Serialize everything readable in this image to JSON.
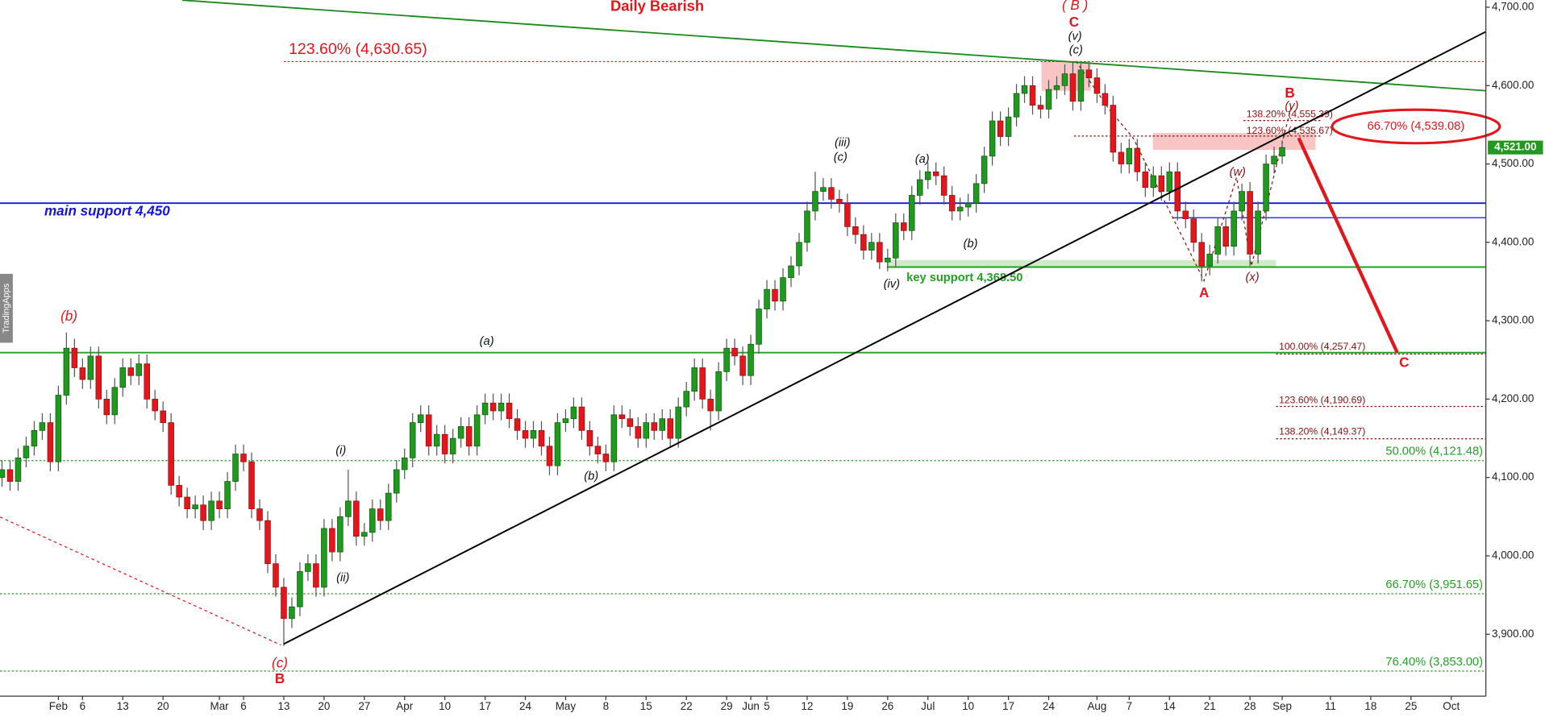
{
  "chart_data": {
    "type": "candlestick",
    "title": "Daily Bearish",
    "watermark": "TradingApps",
    "up_color": "#1f9a1f",
    "down_color": "#e3161b",
    "xlim": [
      -0.25,
      184.3
    ],
    "ylim": [
      3821,
      4709
    ],
    "xticks": [
      {
        "value": 7,
        "label": "Feb"
      },
      {
        "value": 10,
        "label": "6"
      },
      {
        "value": 15,
        "label": "13"
      },
      {
        "value": 20,
        "label": "20"
      },
      {
        "value": 27,
        "label": "Mar"
      },
      {
        "value": 30,
        "label": "6"
      },
      {
        "value": 35,
        "label": "13"
      },
      {
        "value": 40,
        "label": "20"
      },
      {
        "value": 45,
        "label": "27"
      },
      {
        "value": 50,
        "label": "Apr"
      },
      {
        "value": 55,
        "label": "10"
      },
      {
        "value": 60,
        "label": "17"
      },
      {
        "value": 65,
        "label": "24"
      },
      {
        "value": 70,
        "label": "May"
      },
      {
        "value": 75,
        "label": "8"
      },
      {
        "value": 80,
        "label": "15"
      },
      {
        "value": 85,
        "label": "22"
      },
      {
        "value": 90,
        "label": "29"
      },
      {
        "value": 93,
        "label": "Jun"
      },
      {
        "value": 95,
        "label": "5"
      },
      {
        "value": 100,
        "label": "12"
      },
      {
        "value": 105,
        "label": "19"
      },
      {
        "value": 110,
        "label": "26"
      },
      {
        "value": 115,
        "label": "Jul"
      },
      {
        "value": 120,
        "label": "10"
      },
      {
        "value": 125,
        "label": "17"
      },
      {
        "value": 130,
        "label": "24"
      },
      {
        "value": 136,
        "label": "Aug"
      },
      {
        "value": 140,
        "label": "7"
      },
      {
        "value": 145,
        "label": "14"
      },
      {
        "value": 150,
        "label": "21"
      },
      {
        "value": 155,
        "label": "28"
      },
      {
        "value": 159,
        "label": "Sep"
      },
      {
        "value": 165,
        "label": "11"
      },
      {
        "value": 170,
        "label": "18"
      },
      {
        "value": 175,
        "label": "25"
      },
      {
        "value": 180,
        "label": "Oct"
      }
    ],
    "yticks": [
      {
        "value": 3900,
        "label": "3,900.00"
      },
      {
        "value": 4000,
        "label": "4,000.00"
      },
      {
        "value": 4100,
        "label": "4,100.00"
      },
      {
        "value": 4200,
        "label": "4,200.00"
      },
      {
        "value": 4300,
        "label": "4,300.00"
      },
      {
        "value": 4400,
        "label": "4,400.00"
      },
      {
        "value": 4500,
        "label": "4,500.00"
      },
      {
        "value": 4600,
        "label": "4,600.00"
      },
      {
        "value": 4700,
        "label": "4,700.00"
      }
    ],
    "open": [
      4100,
      4110,
      4095,
      4125,
      4140,
      4160,
      4170,
      4120,
      4205,
      4265,
      4240,
      4225,
      4255,
      4200,
      4180,
      4215,
      4240,
      4230,
      4245,
      4200,
      4185,
      4170,
      4090,
      4075,
      4060,
      4065,
      4045,
      4070,
      4060,
      4095,
      4130,
      4120,
      4060,
      4045,
      3990,
      3960,
      3920,
      3935,
      3980,
      3990,
      3960,
      4035,
      4005,
      4050,
      4070,
      4025,
      4030,
      4060,
      4045,
      4080,
      4110,
      4125,
      4170,
      4180,
      4140,
      4155,
      4130,
      4150,
      4165,
      4140,
      4180,
      4195,
      4185,
      4195,
      4175,
      4160,
      4150,
      4160,
      4140,
      4115,
      4170,
      4175,
      4190,
      4160,
      4140,
      4130,
      4120,
      4180,
      4175,
      4165,
      4150,
      4170,
      4160,
      4175,
      4150,
      4190,
      4210,
      4240,
      4200,
      4185,
      4235,
      4265,
      4255,
      4230,
      4270,
      4315,
      4340,
      4325,
      4355,
      4370,
      4400,
      4440,
      4465,
      4470,
      4455,
      4450,
      4420,
      4410,
      4390,
      4400,
      4375,
      4380,
      4425,
      4415,
      4460,
      4480,
      4490,
      4485,
      4460,
      4440,
      4445,
      4450,
      4475,
      4510,
      4555,
      4535,
      4560,
      4590,
      4600,
      4575,
      4570,
      4595,
      4600,
      4615,
      4580,
      4620,
      4610,
      4590,
      4575,
      4515,
      4500,
      4520,
      4490,
      4470,
      4485,
      4465,
      4490,
      4440,
      4430,
      4400,
      4370,
      4385,
      4420,
      4395,
      4440,
      4465,
      4385,
      4440,
      4500,
      4510
    ],
    "high": [
      4122,
      4122,
      4137,
      4152,
      4172,
      4182,
      4182,
      4217,
      4285,
      4277,
      4252,
      4267,
      4267,
      4212,
      4227,
      4252,
      4252,
      4257,
      4257,
      4212,
      4197,
      4182,
      4102,
      4087,
      4077,
      4077,
      4082,
      4082,
      4107,
      4142,
      4142,
      4132,
      4072,
      4057,
      4002,
      3972,
      3947,
      3992,
      4002,
      4002,
      4047,
      4047,
      4062,
      4110,
      4082,
      4042,
      4072,
      4072,
      4092,
      4122,
      4137,
      4182,
      4192,
      4192,
      4167,
      4167,
      4162,
      4177,
      4177,
      4192,
      4207,
      4207,
      4207,
      4207,
      4187,
      4172,
      4172,
      4172,
      4152,
      4182,
      4187,
      4202,
      4202,
      4172,
      4152,
      4142,
      4192,
      4192,
      4187,
      4177,
      4182,
      4182,
      4187,
      4187,
      4202,
      4222,
      4252,
      4252,
      4212,
      4247,
      4277,
      4277,
      4267,
      4282,
      4327,
      4352,
      4352,
      4367,
      4382,
      4412,
      4452,
      4490,
      4482,
      4482,
      4467,
      4462,
      4432,
      4422,
      4412,
      4412,
      4392,
      4437,
      4437,
      4472,
      4492,
      4502,
      4502,
      4497,
      4472,
      4457,
      4462,
      4487,
      4522,
      4567,
      4567,
      4572,
      4602,
      4612,
      4612,
      4587,
      4607,
      4612,
      4627,
      4630,
      4628,
      4628,
      4622,
      4602,
      4587,
      4527,
      4532,
      4532,
      4502,
      4497,
      4497,
      4502,
      4502,
      4452,
      4442,
      4412,
      4397,
      4432,
      4432,
      4452,
      4475,
      4477,
      4452,
      4512,
      4522,
      4530
    ],
    "low": [
      4088,
      4083,
      4083,
      4113,
      4128,
      4148,
      4108,
      4108,
      4193,
      4228,
      4213,
      4213,
      4188,
      4168,
      4168,
      4203,
      4218,
      4218,
      4188,
      4173,
      4158,
      4078,
      4063,
      4048,
      4048,
      4033,
      4033,
      4048,
      4048,
      4083,
      4108,
      4048,
      4033,
      3978,
      3948,
      3885,
      3908,
      3923,
      3968,
      3948,
      3948,
      3993,
      3993,
      4038,
      4013,
      4013,
      4018,
      4033,
      4033,
      4068,
      4098,
      4113,
      4158,
      4128,
      4128,
      4118,
      4118,
      4138,
      4128,
      4128,
      4168,
      4173,
      4173,
      4163,
      4148,
      4138,
      4138,
      4128,
      4103,
      4103,
      4158,
      4163,
      4148,
      4128,
      4118,
      4108,
      4108,
      4163,
      4153,
      4138,
      4138,
      4148,
      4148,
      4138,
      4138,
      4178,
      4198,
      4188,
      4160,
      4173,
      4223,
      4243,
      4218,
      4218,
      4258,
      4303,
      4313,
      4313,
      4343,
      4358,
      4388,
      4428,
      4453,
      4443,
      4438,
      4408,
      4398,
      4378,
      4378,
      4366,
      4363,
      4368,
      4403,
      4403,
      4448,
      4468,
      4473,
      4448,
      4428,
      4428,
      4433,
      4438,
      4463,
      4498,
      4523,
      4523,
      4548,
      4578,
      4563,
      4558,
      4558,
      4583,
      4588,
      4568,
      4568,
      4598,
      4578,
      4563,
      4503,
      4488,
      4488,
      4478,
      4458,
      4458,
      4453,
      4453,
      4428,
      4418,
      4388,
      4350,
      4358,
      4373,
      4383,
      4383,
      4428,
      4370,
      4373,
      4428,
      4488,
      4500
    ],
    "close": [
      4110,
      4095,
      4125,
      4140,
      4160,
      4170,
      4120,
      4205,
      4265,
      4240,
      4225,
      4255,
      4200,
      4180,
      4215,
      4240,
      4230,
      4245,
      4200,
      4185,
      4170,
      4090,
      4075,
      4060,
      4065,
      4045,
      4070,
      4060,
      4095,
      4130,
      4120,
      4060,
      4045,
      3990,
      3960,
      3920,
      3935,
      3980,
      3990,
      3960,
      4035,
      4005,
      4050,
      4070,
      4025,
      4030,
      4060,
      4045,
      4080,
      4110,
      4125,
      4170,
      4180,
      4140,
      4155,
      4130,
      4150,
      4165,
      4140,
      4180,
      4195,
      4185,
      4195,
      4175,
      4160,
      4150,
      4160,
      4140,
      4115,
      4170,
      4175,
      4190,
      4160,
      4140,
      4130,
      4120,
      4180,
      4175,
      4165,
      4150,
      4170,
      4160,
      4175,
      4150,
      4190,
      4210,
      4240,
      4200,
      4185,
      4235,
      4265,
      4255,
      4230,
      4270,
      4315,
      4340,
      4325,
      4355,
      4370,
      4400,
      4440,
      4465,
      4470,
      4455,
      4450,
      4420,
      4410,
      4390,
      4400,
      4375,
      4380,
      4425,
      4415,
      4460,
      4480,
      4490,
      4485,
      4460,
      4440,
      4445,
      4450,
      4475,
      4510,
      4555,
      4535,
      4560,
      4590,
      4600,
      4575,
      4570,
      4595,
      4600,
      4615,
      4580,
      4620,
      4610,
      4590,
      4575,
      4515,
      4500,
      4520,
      4490,
      4470,
      4485,
      4465,
      4490,
      4440,
      4430,
      4400,
      4370,
      4385,
      4420,
      4395,
      4440,
      4465,
      4385,
      4440,
      4500,
      4510,
      4521
    ],
    "last_price": {
      "value": 4521,
      "label": "4,521.00"
    },
    "target": {
      "value": 4539.08,
      "label": "66.70% (4,539.08)",
      "color": "#e3161b"
    },
    "levels": [
      {
        "value": 4630.65,
        "label": "123.60% (4,630.65)",
        "color": "#e3161b",
        "style": "dotted"
      },
      {
        "value": 4450,
        "label": "main support 4,450",
        "color": "#1515d8",
        "style": "solid"
      },
      {
        "value": 4368.5,
        "label": "key support 4,368.50",
        "color": "#22a022",
        "style": "solid"
      },
      {
        "value": 4257.47,
        "label": "100.00% (4,257.47)",
        "color": "#8b1010",
        "style": "dotted"
      },
      {
        "value": 4190.69,
        "label": "123.60% (4,190.69)",
        "color": "#8b1010",
        "style": "dotted"
      },
      {
        "value": 4149.37,
        "label": "138.20% (4,149.37)",
        "color": "#8b1010",
        "style": "dotted"
      },
      {
        "value": 4121.48,
        "label": "50.00% (4,121.48)",
        "color": "#22a022",
        "style": "dotted"
      },
      {
        "value": 3951.65,
        "label": "66.70% (3,951.65)",
        "color": "#22a022",
        "style": "dotted"
      },
      {
        "value": 3853,
        "label": "76.40% (3,853.00)",
        "color": "#22a022",
        "style": "dotted"
      },
      {
        "value": 4555.39,
        "label": "138.20% (4,555.39)",
        "color": "#8b1010",
        "style": "dotted"
      },
      {
        "value": 4535.67,
        "label": "123.60% (4,535.67)",
        "color": "#8b1010",
        "style": "dotted"
      }
    ],
    "wave_labels": [
      "(b)",
      "(c)",
      "B",
      "(i)",
      "(ii)",
      "(a)",
      "(b)",
      "(iii)",
      "(c)",
      "(a)",
      "(b)",
      "(iv)",
      "( B )",
      "C",
      "(v)",
      "(c)",
      "B",
      "(y)",
      "(w)",
      "(x)",
      "A",
      "C"
    ]
  }
}
